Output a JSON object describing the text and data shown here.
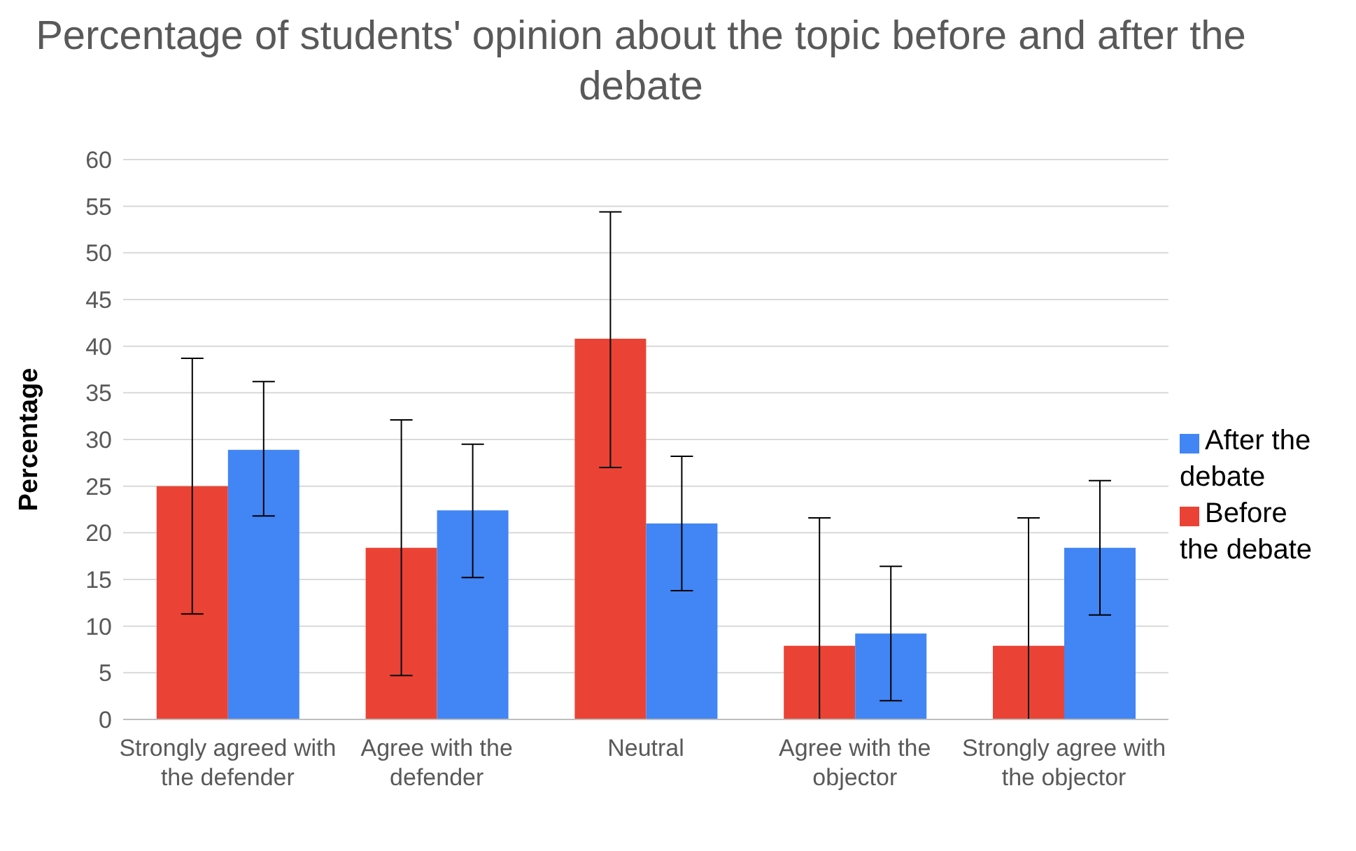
{
  "chart_data": {
    "type": "bar",
    "title": "Percentage of students' opinion about the topic before and after the debate",
    "ylabel": "Percentage",
    "categories": [
      "Strongly agreed with the defender",
      "Agree with the defender",
      "Neutral",
      "Agree with the objector",
      "Strongly agree with the objector"
    ],
    "series": [
      {
        "name": "Before the debate",
        "color": "#ea4335",
        "values": [
          25,
          18.4,
          40.8,
          7.9,
          7.9
        ],
        "errors": [
          [
            11.3,
            38.7
          ],
          [
            4.7,
            32.1
          ],
          [
            27,
            54.4
          ],
          [
            0,
            21.6
          ],
          [
            0,
            21.6
          ]
        ]
      },
      {
        "name": "After the debate",
        "color": "#4285f4",
        "values": [
          28.9,
          22.4,
          21,
          9.2,
          18.4
        ],
        "errors": [
          [
            21.8,
            36.2
          ],
          [
            15.2,
            29.5
          ],
          [
            13.8,
            28.2
          ],
          [
            2,
            16.4
          ],
          [
            11.2,
            25.6
          ]
        ]
      }
    ],
    "ylim": [
      0,
      60
    ],
    "yticks": [
      0,
      5,
      10,
      15,
      20,
      25,
      30,
      35,
      40,
      45,
      50,
      55,
      60
    ],
    "grid": "y",
    "legend": "right"
  }
}
